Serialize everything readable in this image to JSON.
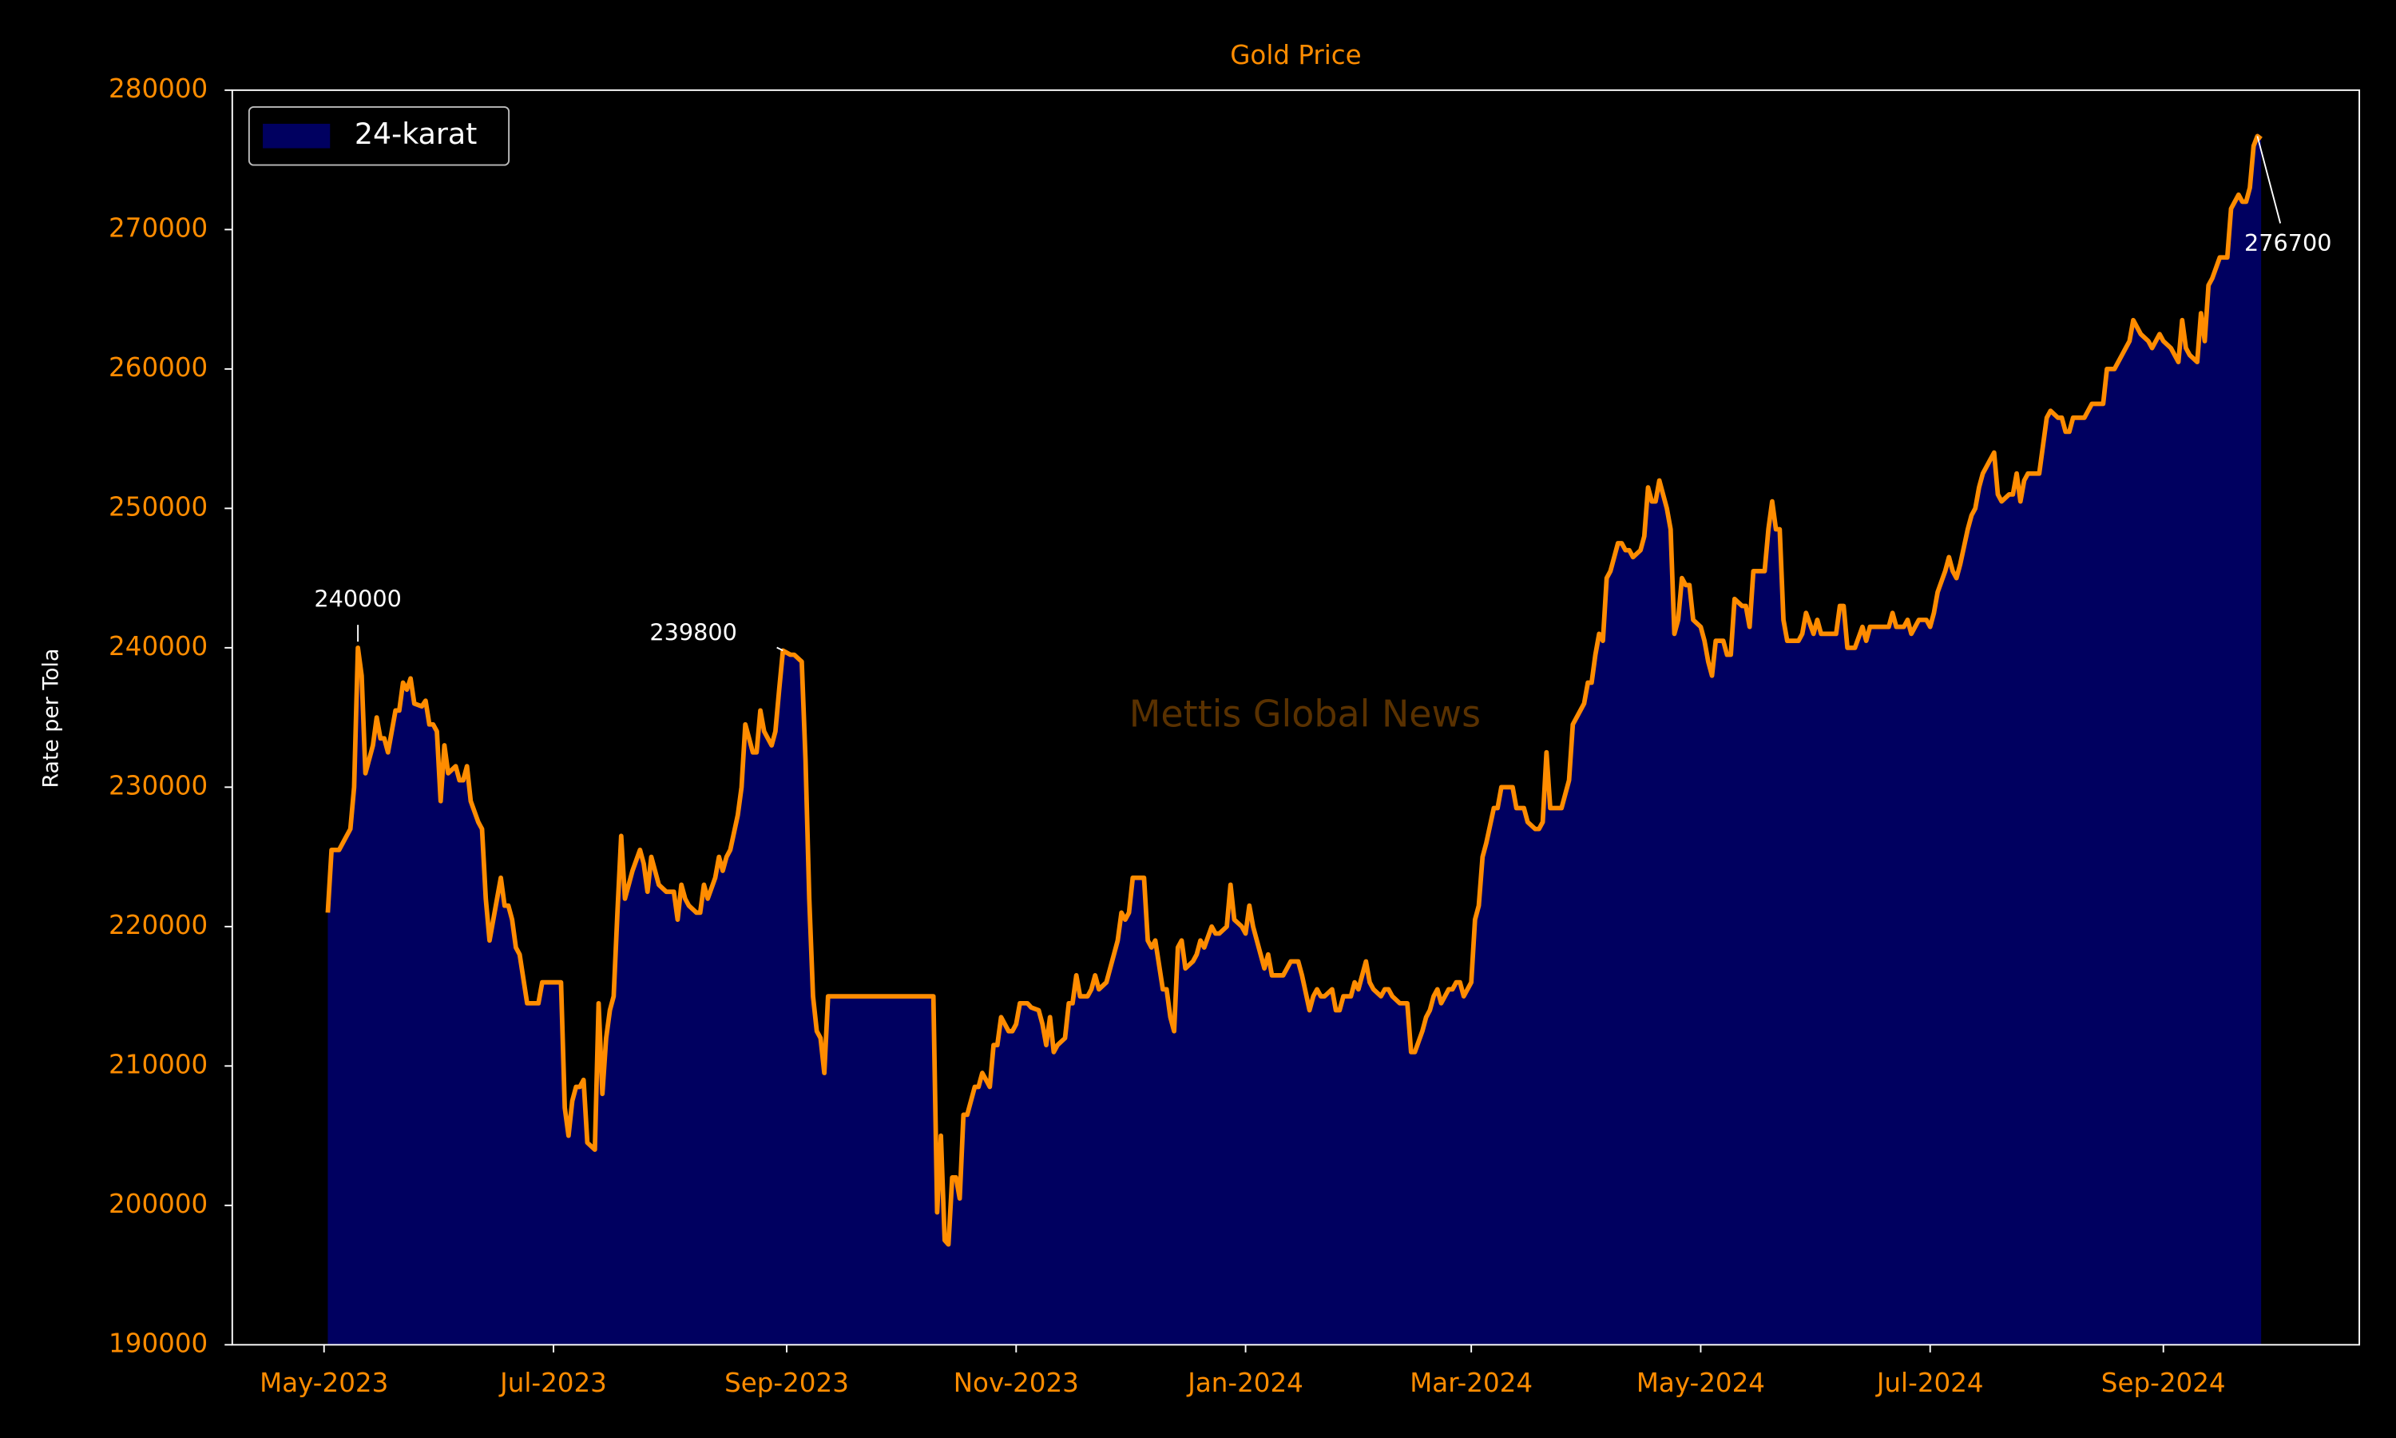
{
  "chart_data": {
    "type": "area",
    "title": "Gold Price",
    "ylabel": "Rate per Tola",
    "watermark": "Mettis Global News",
    "legend": "upper left",
    "xlim": [
      -24.4,
      541.1
    ],
    "ylim": [
      190000,
      280000
    ],
    "yticks": [
      190000,
      200000,
      210000,
      220000,
      230000,
      240000,
      250000,
      260000,
      270000,
      280000
    ],
    "xticks": [
      {
        "value": 0,
        "label": "May-2023"
      },
      {
        "value": 61,
        "label": "Jul-2023"
      },
      {
        "value": 123,
        "label": "Sep-2023"
      },
      {
        "value": 184,
        "label": "Nov-2023"
      },
      {
        "value": 245,
        "label": "Jan-2024"
      },
      {
        "value": 305,
        "label": "Mar-2024"
      },
      {
        "value": 366,
        "label": "May-2024"
      },
      {
        "value": 427,
        "label": "Jul-2024"
      },
      {
        "value": 489,
        "label": "Sep-2024"
      }
    ],
    "x": [
      1,
      2,
      4,
      6,
      7,
      8,
      9,
      10,
      11,
      13,
      14,
      15,
      16,
      17,
      19,
      20,
      21,
      22,
      23,
      24,
      26,
      27,
      28,
      29,
      30,
      31,
      32,
      33,
      35,
      36,
      37,
      38,
      39,
      41,
      42,
      43,
      44,
      46,
      47,
      48,
      49,
      50,
      51,
      52,
      54,
      55,
      56,
      57,
      58,
      59,
      61,
      63,
      64,
      65,
      66,
      67,
      68,
      69,
      70,
      72,
      73,
      74,
      75,
      76,
      77,
      78,
      79,
      80,
      81,
      82,
      84,
      85,
      86,
      87,
      88,
      89,
      91,
      92,
      93,
      94,
      95,
      96,
      97,
      99,
      100,
      101,
      102,
      104,
      105,
      106,
      107,
      108,
      110,
      111,
      112,
      114,
      115,
      116,
      117,
      119,
      120,
      121,
      122,
      124,
      125,
      127,
      128,
      129,
      130,
      131,
      132,
      133,
      134,
      141,
      149,
      158,
      162,
      163,
      164,
      165,
      166,
      167,
      168,
      169,
      170,
      171,
      173,
      174,
      175,
      176,
      177,
      178,
      179,
      180,
      182,
      183,
      184,
      185,
      187,
      188,
      190,
      191,
      192,
      193,
      194,
      195,
      197,
      198,
      199,
      200,
      201,
      203,
      204,
      205,
      206,
      208,
      209,
      210,
      211,
      212,
      213,
      214,
      215,
      217,
      218,
      219,
      220,
      221,
      223,
      224,
      225,
      226,
      227,
      228,
      229,
      231,
      232,
      233,
      234,
      236,
      237,
      238,
      240,
      241,
      242,
      244,
      245,
      246,
      247,
      249,
      250,
      251,
      252,
      253,
      254,
      255,
      257,
      258,
      259,
      260,
      262,
      263,
      264,
      265,
      266,
      268,
      269,
      270,
      271,
      273,
      274,
      275,
      276,
      277,
      278,
      279,
      281,
      282,
      283,
      284,
      286,
      287,
      288,
      289,
      290,
      292,
      293,
      294,
      295,
      296,
      297,
      299,
      300,
      301,
      302,
      303,
      305,
      306,
      307,
      308,
      309,
      311,
      312,
      313,
      314,
      316,
      317,
      318,
      319,
      320,
      322,
      323,
      324,
      325,
      326,
      327,
      329,
      330,
      331,
      332,
      333,
      335,
      336,
      337,
      338,
      339,
      340,
      341,
      342,
      344,
      345,
      346,
      347,
      348,
      350,
      351,
      352,
      353,
      354,
      355,
      357,
      358,
      359,
      360,
      361,
      362,
      363,
      364,
      366,
      367,
      368,
      369,
      370,
      372,
      373,
      374,
      375,
      377,
      378,
      379,
      380,
      381,
      383,
      384,
      385,
      386,
      387,
      388,
      389,
      391,
      392,
      393,
      394,
      396,
      397,
      398,
      399,
      400,
      402,
      403,
      404,
      405,
      406,
      407,
      409,
      410,
      411,
      412,
      413,
      415,
      416,
      417,
      418,
      420,
      421,
      422,
      423,
      424,
      426,
      427,
      428,
      429,
      431,
      432,
      433,
      434,
      435,
      437,
      438,
      439,
      440,
      441,
      443,
      444,
      445,
      446,
      448,
      449,
      450,
      451,
      452,
      453,
      454,
      456,
      457,
      458,
      459,
      461,
      462,
      463,
      464,
      465,
      467,
      468,
      469,
      470,
      472,
      473,
      474,
      475,
      476,
      478,
      479,
      480,
      481,
      482,
      483,
      485,
      486,
      487,
      488,
      489,
      491,
      492,
      493,
      494,
      495,
      496,
      498,
      499,
      500,
      501,
      502,
      504,
      505,
      506,
      507,
      509,
      510,
      511,
      512,
      513,
      514,
      515
    ],
    "series": [
      {
        "name": "24-karat",
        "color": "#ff8c00",
        "fill": "#000060",
        "values": [
          221000,
          225500,
          225500,
          226500,
          227000,
          230000,
          240000,
          238000,
          231000,
          233000,
          235000,
          233500,
          233500,
          232500,
          235500,
          235500,
          237500,
          237000,
          237800,
          236000,
          235800,
          236200,
          234500,
          234500,
          234000,
          229000,
          233000,
          231000,
          231500,
          230500,
          230500,
          231500,
          229000,
          227500,
          227000,
          222000,
          219000,
          222000,
          223500,
          221500,
          221500,
          220500,
          218500,
          218000,
          214500,
          214500,
          214500,
          214500,
          216000,
          216000,
          216000,
          216000,
          207000,
          205000,
          207500,
          208500,
          208500,
          209000,
          204500,
          204000,
          214500,
          208000,
          212000,
          214000,
          215000,
          221000,
          226500,
          222000,
          223000,
          224000,
          225500,
          224500,
          222500,
          225000,
          224000,
          223000,
          222500,
          222500,
          222500,
          220500,
          223000,
          222000,
          221500,
          221000,
          221000,
          223000,
          222000,
          223500,
          225000,
          224000,
          225000,
          225500,
          228000,
          230000,
          234500,
          232500,
          232500,
          235500,
          234000,
          233000,
          234000,
          237000,
          239800,
          239500,
          239500,
          239000,
          232000,
          222000,
          215000,
          212500,
          212000,
          209500,
          215000,
          215000,
          215000,
          215000,
          215000,
          199500,
          205000,
          197500,
          197200,
          202000,
          202000,
          200500,
          206500,
          206500,
          208500,
          208500,
          209500,
          209000,
          208500,
          211500,
          211500,
          213500,
          212500,
          212500,
          213000,
          214500,
          214500,
          214200,
          214000,
          213000,
          211500,
          213500,
          211000,
          211500,
          212000,
          214500,
          214500,
          216500,
          215000,
          215000,
          215500,
          216500,
          215500,
          216000,
          217000,
          218000,
          219000,
          221000,
          220500,
          221000,
          223500,
          223500,
          223500,
          219000,
          218500,
          219000,
          215500,
          215500,
          213500,
          212500,
          218500,
          219000,
          217000,
          217500,
          218000,
          219000,
          218500,
          220000,
          219500,
          219500,
          220000,
          223000,
          220500,
          220000,
          219500,
          221500,
          220000,
          218000,
          217000,
          218000,
          216500,
          216500,
          216500,
          216500,
          217500,
          217500,
          217500,
          216500,
          214000,
          215000,
          215500,
          215000,
          215000,
          215500,
          214000,
          214000,
          215000,
          215000,
          216000,
          215500,
          216500,
          217500,
          216000,
          215500,
          215000,
          215500,
          215500,
          215000,
          214500,
          214500,
          214500,
          211000,
          211000,
          212500,
          213500,
          214000,
          215000,
          215500,
          214500,
          215500,
          215500,
          216000,
          216000,
          215000,
          216000,
          220500,
          221500,
          225000,
          226000,
          228500,
          228500,
          230000,
          230000,
          230000,
          228500,
          228500,
          228500,
          227500,
          227000,
          227000,
          227500,
          232500,
          228500,
          228500,
          228500,
          229500,
          230500,
          234500,
          235000,
          236000,
          237500,
          237500,
          239500,
          241000,
          240500,
          245000,
          245500,
          247500,
          247500,
          247000,
          247000,
          246500,
          247000,
          248000,
          251500,
          250500,
          250500,
          252000,
          250000,
          248500,
          241000,
          242000,
          245000,
          244500,
          244500,
          242000,
          241500,
          240500,
          239000,
          238000,
          240500,
          240500,
          239500,
          239500,
          243500,
          243000,
          243000,
          241500,
          245500,
          245500,
          245500,
          248500,
          250500,
          248500,
          248500,
          242000,
          240500,
          240500,
          240500,
          241000,
          242500,
          241000,
          242000,
          241000,
          241000,
          241000,
          241000,
          243000,
          243000,
          240000,
          240000,
          240000,
          241500,
          240500,
          241500,
          241500,
          241500,
          241500,
          241500,
          242500,
          241500,
          241500,
          242000,
          241000,
          241500,
          242000,
          242000,
          241500,
          242500,
          244000,
          245500,
          246500,
          245500,
          245000,
          246000,
          248500,
          249500,
          250000,
          251500,
          252500,
          253500,
          254000,
          251000,
          250500,
          251000,
          251000,
          252500,
          250500,
          252000,
          252500,
          252500,
          252500,
          254500,
          256500,
          257000,
          256500,
          256500,
          255500,
          255500,
          256500,
          256500,
          256500,
          257000,
          257500,
          257500,
          257500,
          260000,
          260000,
          260000,
          261000,
          261500,
          262000,
          263500,
          263000,
          262500,
          262000,
          261500,
          262000,
          262500,
          262000,
          261500,
          261000,
          260500,
          263500,
          261500,
          261000,
          260500,
          264000,
          262000,
          266000,
          266500,
          268000,
          268000,
          268000,
          271500,
          272500,
          272000,
          272000,
          273000,
          276000,
          276700,
          276500
        ]
      }
    ],
    "annotations": [
      {
        "x": 9,
        "value": 240000
      },
      {
        "x": 122,
        "value": 239800
      },
      {
        "x": 514,
        "value": 276700
      }
    ]
  }
}
